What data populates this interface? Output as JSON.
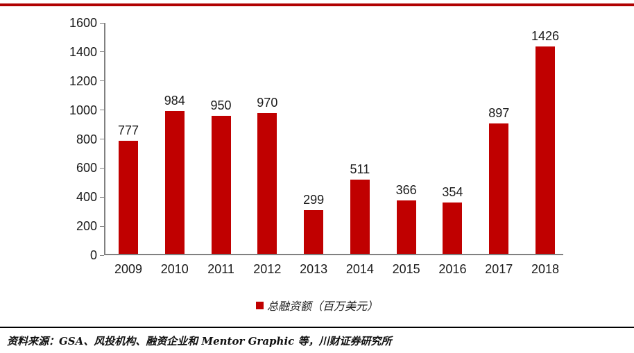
{
  "decor": {
    "top_rule_color": "#B00000"
  },
  "chart_data": {
    "type": "bar",
    "categories": [
      "2009",
      "2010",
      "2011",
      "2012",
      "2013",
      "2014",
      "2015",
      "2016",
      "2017",
      "2018"
    ],
    "values": [
      777,
      984,
      950,
      970,
      299,
      511,
      366,
      354,
      897,
      1426
    ],
    "series_name": "总融资额（百万美元）",
    "bar_color": "#C00000",
    "ylim": [
      0,
      1600
    ],
    "yticks": [
      0,
      200,
      400,
      600,
      800,
      1000,
      1200,
      1400,
      1600
    ],
    "grid": false,
    "legend_position": "bottom",
    "data_labels": true
  },
  "legend": {
    "label": "总融资额（百万美元）",
    "marker_color": "#C00000"
  },
  "footer": {
    "source_text": "资料来源：GSA、风投机构、融资企业和 Mentor Graphic 等，川财证券研究所"
  }
}
